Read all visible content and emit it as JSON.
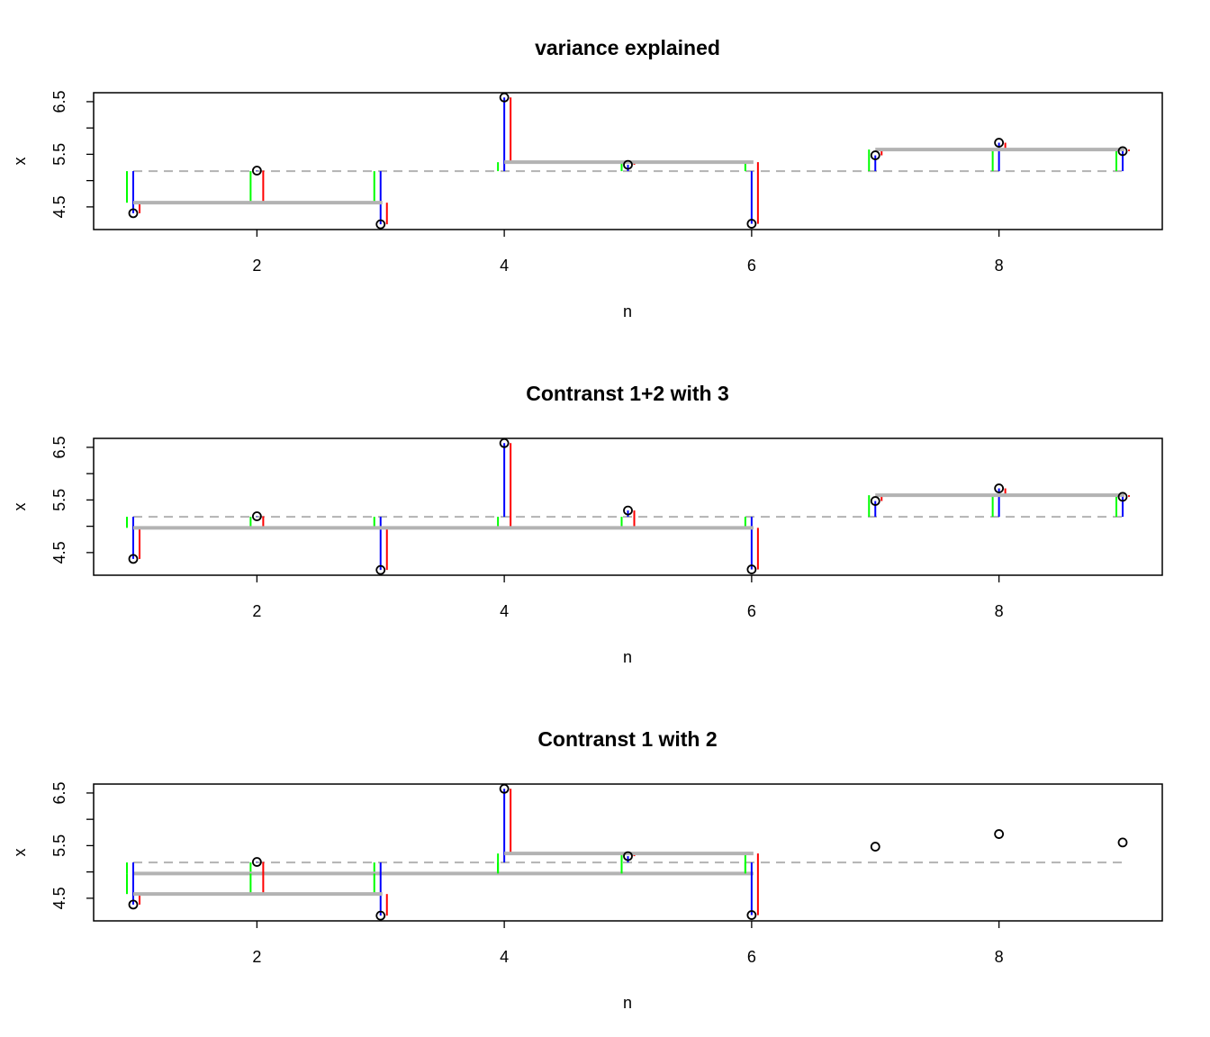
{
  "chart_data": [
    {
      "type": "scatter",
      "title": "variance explained",
      "xlabel": "n",
      "ylabel": "x",
      "xlim": [
        1,
        9
      ],
      "ylim": [
        4.07,
        6.67
      ],
      "xticks": [
        "2",
        "4",
        "6",
        "8"
      ],
      "yticks": [
        "4.5",
        "5.5",
        "6.5"
      ],
      "x": [
        1,
        2,
        3,
        4,
        5,
        6,
        7,
        8,
        9
      ],
      "y": [
        4.38,
        5.19,
        4.17,
        6.58,
        5.3,
        4.18,
        5.48,
        5.72,
        5.56
      ],
      "grand_mean": 5.18,
      "groups": [
        {
          "points": [
            1,
            2,
            3
          ],
          "mean": 4.58
        },
        {
          "points": [
            4,
            5,
            6
          ],
          "mean": 5.35
        },
        {
          "points": [
            7,
            8,
            9
          ],
          "mean": 5.59
        }
      ],
      "colors": {
        "points": "#000000",
        "green": "#00ff00",
        "blue": "#0000ff",
        "red": "#ff0000",
        "mean_line": "#b3b3b3",
        "grand_mean_line": "#b3b3b3"
      },
      "grid": false
    },
    {
      "type": "scatter",
      "title": "Contranst 1+2 with 3",
      "xlabel": "n",
      "ylabel": "x",
      "xlim": [
        1,
        9
      ],
      "ylim": [
        4.07,
        6.67
      ],
      "xticks": [
        "2",
        "4",
        "6",
        "8"
      ],
      "yticks": [
        "4.5",
        "5.5",
        "6.5"
      ],
      "x": [
        1,
        2,
        3,
        4,
        5,
        6,
        7,
        8,
        9
      ],
      "y": [
        4.38,
        5.19,
        4.17,
        6.58,
        5.3,
        4.18,
        5.48,
        5.72,
        5.56
      ],
      "grand_mean": 5.18,
      "groups": [
        {
          "points": [
            1,
            2,
            3,
            4,
            5,
            6
          ],
          "mean": 4.97
        },
        {
          "points": [
            7,
            8,
            9
          ],
          "mean": 5.59
        }
      ],
      "colors": {
        "points": "#000000",
        "green": "#00ff00",
        "blue": "#0000ff",
        "red": "#ff0000",
        "mean_line": "#b3b3b3",
        "grand_mean_line": "#b3b3b3"
      },
      "grid": false
    },
    {
      "type": "scatter",
      "title": "Contranst 1 with 2",
      "xlabel": "n",
      "ylabel": "x",
      "xlim": [
        1,
        9
      ],
      "ylim": [
        4.07,
        6.67
      ],
      "xticks": [
        "2",
        "4",
        "6",
        "8"
      ],
      "yticks": [
        "4.5",
        "5.5",
        "6.5"
      ],
      "x": [
        1,
        2,
        3,
        4,
        5,
        6,
        7,
        8,
        9
      ],
      "y": [
        4.38,
        5.19,
        4.17,
        6.58,
        5.3,
        4.18,
        5.48,
        5.72,
        5.56
      ],
      "grand_mean": 5.18,
      "overall_mean": {
        "points": [
          1,
          2,
          3,
          4,
          5,
          6
        ],
        "mean": 4.97
      },
      "groups": [
        {
          "points": [
            1,
            2,
            3
          ],
          "mean": 4.58
        },
        {
          "points": [
            4,
            5,
            6
          ],
          "mean": 5.35
        }
      ],
      "colors": {
        "points": "#000000",
        "green": "#00ff00",
        "blue": "#0000ff",
        "red": "#ff0000",
        "mean_line": "#b3b3b3",
        "grand_mean_line": "#b3b3b3"
      },
      "grid": false
    }
  ]
}
